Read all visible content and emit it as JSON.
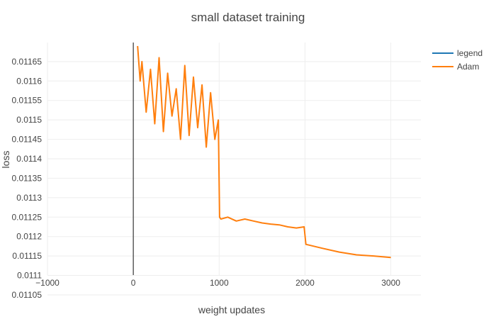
{
  "chart_data": {
    "type": "line",
    "title": "small dataset training",
    "xlabel": "weight updates",
    "ylabel": "loss",
    "xlim": [
      -1000,
      3350
    ],
    "ylim": [
      0.011101,
      0.011699
    ],
    "x_ticks": [
      -1000,
      0,
      1000,
      2000,
      3000
    ],
    "x_tick_labels": [
      "−1000",
      "0",
      "1000",
      "2000",
      "3000"
    ],
    "y_ticks": [
      0.01105,
      0.0111,
      0.01115,
      0.0112,
      0.01125,
      0.0113,
      0.01135,
      0.0114,
      0.01145,
      0.0115,
      0.01155,
      0.0116,
      0.01165
    ],
    "y_tick_labels": [
      "0.01105",
      "0.0111",
      "0.01115",
      "0.0112",
      "0.01125",
      "0.0113",
      "0.01135",
      "0.0114",
      "0.01145",
      "0.0115",
      "0.01155",
      "0.0116",
      "0.01165"
    ],
    "grid": true,
    "legend_position": "top-right",
    "series": [
      {
        "name": "legend",
        "color": "#1f77b4",
        "x": [
          0,
          0
        ],
        "y": [
          0.011101,
          0.011699
        ]
      },
      {
        "name": "Adam",
        "color": "#ff7f0e",
        "x": [
          50,
          80,
          100,
          150,
          200,
          250,
          300,
          350,
          400,
          450,
          500,
          550,
          600,
          650,
          700,
          750,
          800,
          850,
          900,
          950,
          990,
          1005,
          1020,
          1100,
          1200,
          1300,
          1400,
          1500,
          1600,
          1700,
          1800,
          1900,
          1990,
          2010,
          2050,
          2200,
          2400,
          2600,
          2800,
          3000
        ],
        "y": [
          0.01169,
          0.0116,
          0.01165,
          0.01152,
          0.01163,
          0.01149,
          0.01166,
          0.01147,
          0.01162,
          0.01151,
          0.01158,
          0.01145,
          0.01164,
          0.01146,
          0.01161,
          0.01148,
          0.01159,
          0.01143,
          0.01157,
          0.01145,
          0.0115,
          0.01125,
          0.011245,
          0.01125,
          0.01124,
          0.011245,
          0.01124,
          0.011235,
          0.011232,
          0.01123,
          0.011225,
          0.011222,
          0.011225,
          0.01118,
          0.011178,
          0.01117,
          0.01116,
          0.011153,
          0.01115,
          0.011146
        ]
      }
    ]
  }
}
